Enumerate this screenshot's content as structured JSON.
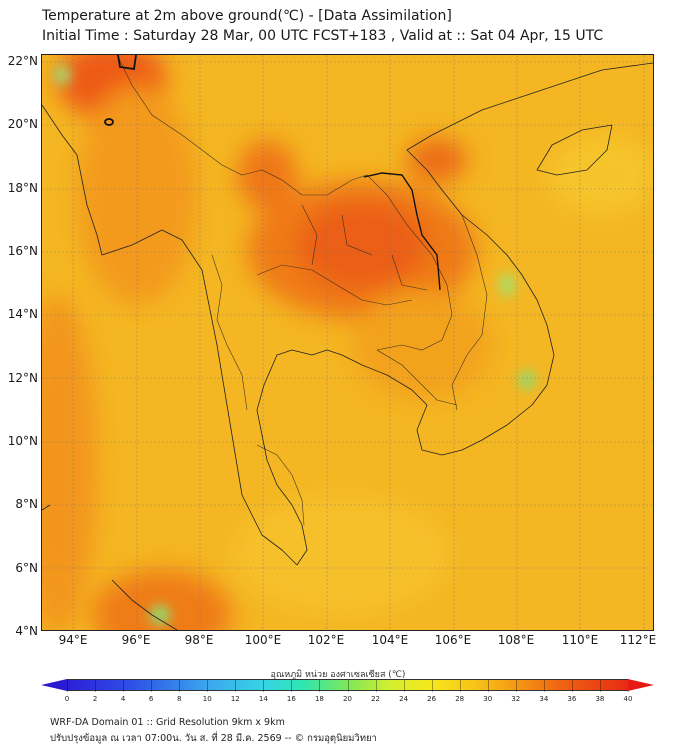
{
  "title_line1": "Temperature at 2m above ground(℃) - [Data Assimilation]",
  "title_line2": "Initial Time : Saturday 28 Mar, 00 UTC FCST+183 , Valid at :: Sat 04 Apr, 15 UTC",
  "map": {
    "lat_labels": [
      "22°N",
      "20°N",
      "18°N",
      "16°N",
      "14°N",
      "12°N",
      "10°N",
      "8°N",
      "6°N",
      "4°N"
    ],
    "lon_labels": [
      "94°E",
      "96°E",
      "98°E",
      "100°E",
      "102°E",
      "104°E",
      "106°E",
      "108°E",
      "110°E",
      "112°E"
    ],
    "lat_range": [
      4,
      22
    ],
    "lon_range": [
      93,
      112.3
    ],
    "gridlines": true,
    "background_color": "#f4b622"
  },
  "colorbar": {
    "title": "อุณหภูมิ หน่วย องศาเซลเซียส (℃)",
    "ticks": [
      "0",
      "2",
      "4",
      "6",
      "8",
      "10",
      "12",
      "14",
      "16",
      "18",
      "20",
      "22",
      "24",
      "26",
      "28",
      "30",
      "32",
      "34",
      "36",
      "38",
      "40"
    ],
    "min": 0,
    "max": 40,
    "colors": [
      "#2b1fd8",
      "#3ba6ee",
      "#2ee6b0",
      "#7de85a",
      "#f7e71c",
      "#f59a14",
      "#e82a12"
    ]
  },
  "footer_line1": "WRF-DA Domain 01 :: Grid Resolution 9km x 9km",
  "footer_line2": "ปรับปรุงข้อมูล ณ เวลา 07:00น. วัน ส. ที่ 28 มี.ค. 2569 -- © กรมอุตุนิยมวิทยา"
}
